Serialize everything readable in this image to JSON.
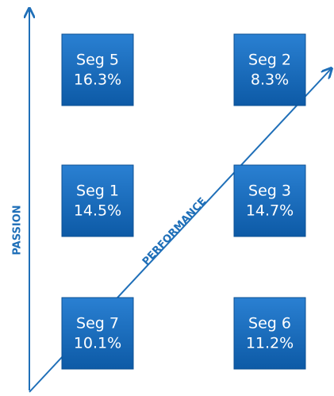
{
  "axes": {
    "vertical_label": "PASSION",
    "diagonal_label": "PERFORMANCE"
  },
  "nodes": [
    {
      "label": "Seg 5",
      "value": "16.3%"
    },
    {
      "label": "Seg 2",
      "value": "8.3%"
    },
    {
      "label": "Seg 1",
      "value": "14.5%"
    },
    {
      "label": "Seg 3",
      "value": "14.7%"
    },
    {
      "label": "Seg 7",
      "value": "10.1%"
    },
    {
      "label": "Seg 6",
      "value": "11.2%"
    }
  ]
}
